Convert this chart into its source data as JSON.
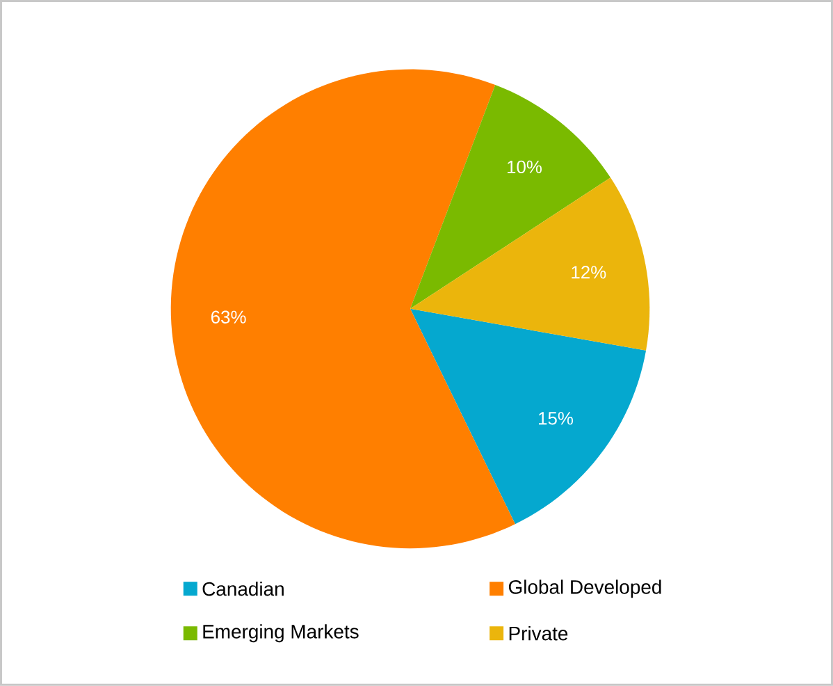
{
  "chart_data": {
    "type": "pie",
    "categories": [
      "Canadian",
      "Global Developed",
      "Emerging Markets",
      "Private"
    ],
    "values": [
      15,
      63,
      10,
      12
    ],
    "colors": [
      "#05a8cf",
      "#ff7f00",
      "#7aba00",
      "#ebb50c"
    ],
    "value_labels": [
      "15%",
      "63%",
      "10%",
      "12%"
    ],
    "legend": "bottom"
  }
}
